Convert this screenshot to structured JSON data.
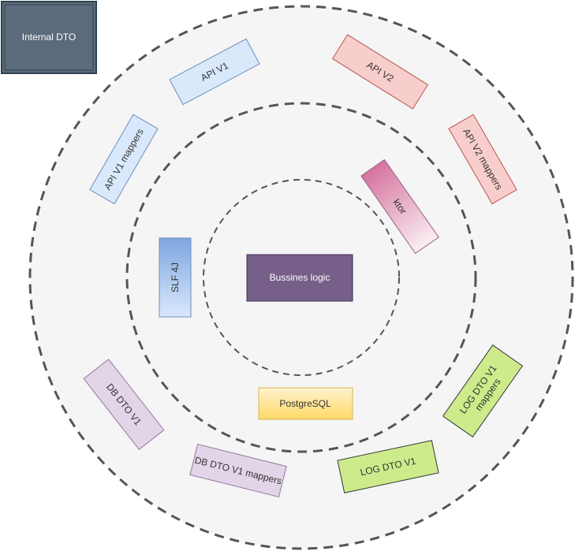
{
  "diagram": {
    "legend": {
      "label": "Internal DTO"
    },
    "core": {
      "label": "Bussines logic"
    },
    "boxes": {
      "api_v1": "API V1",
      "api_v2": "API V2",
      "api_v1_mappers": "API V1 mappers",
      "api_v2_mappers": "API V2 mappers",
      "ktor": "ktor",
      "slf4j": "SLF 4J",
      "postgresql": "PostgreSQL",
      "db_dto_v1": "DB DTO V1",
      "db_dto_v1_mappers": "DB DTO V1 mappers",
      "log_dto_v1": "LOG DTO V1",
      "log_dto_v1_mappers": "LOG DTO V1 mappers"
    }
  },
  "colors": {
    "ring_stroke": "#555555",
    "outer_fill": "#f5f5f5",
    "legend_fill": "#5b6b7b",
    "legend_stroke": "#2f4050",
    "core_fill": "#76608a",
    "core_stroke": "#432d57",
    "blue_fill": "#dae8fc",
    "blue_stroke": "#6c8ebf",
    "red_fill": "#f8cecc",
    "red_stroke": "#b85450",
    "purple_fill": "#e1d5e7",
    "purple_stroke": "#9673a6",
    "green_fill": "#cdeb8b",
    "green_stroke": "#36393d",
    "yellow_fill": "#fff2cc",
    "yellow_stroke": "#d6b656"
  }
}
